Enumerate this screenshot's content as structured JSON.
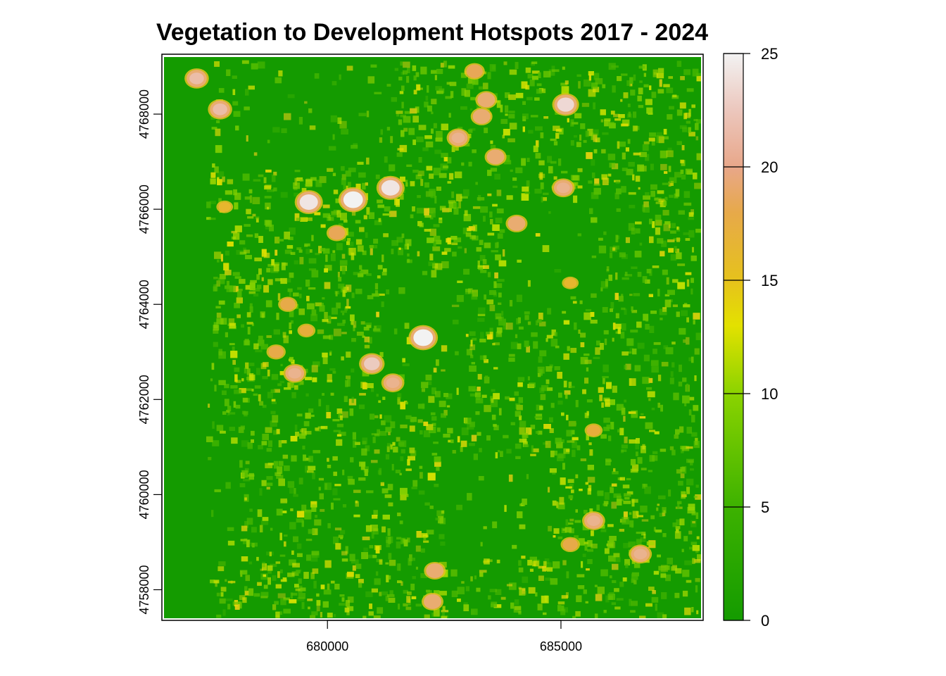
{
  "chart_data": {
    "type": "heatmap",
    "title": "Vegetation to Development Hotspots 2017 - 2024",
    "xlabel": "",
    "ylabel": "",
    "xlim": [
      676500,
      688000
    ],
    "ylim": [
      4757400,
      4769200
    ],
    "x_ticks": [
      680000,
      685000
    ],
    "y_ticks": [
      4758000,
      4760000,
      4762000,
      4764000,
      4766000,
      4768000
    ],
    "colorbar": {
      "range": [
        0,
        25
      ],
      "ticks": [
        0,
        5,
        10,
        15,
        20,
        25
      ],
      "colors": [
        "#149b00",
        "#36ae00",
        "#5bc100",
        "#8bd300",
        "#c9e400",
        "#e3e100",
        "#e6c41c",
        "#e7ad3a",
        "#e8a75a",
        "#eab69b",
        "#edd5d0",
        "#f2f2f2"
      ],
      "placement": "right"
    },
    "legend_placement": "right",
    "grid": false,
    "hotspots": [
      {
        "x": 677200,
        "y": 4768750,
        "value": 21
      },
      {
        "x": 677700,
        "y": 4768100,
        "value": 21
      },
      {
        "x": 679600,
        "y": 4766150,
        "value": 24
      },
      {
        "x": 680550,
        "y": 4766200,
        "value": 25
      },
      {
        "x": 681350,
        "y": 4766450,
        "value": 24
      },
      {
        "x": 683150,
        "y": 4768900,
        "value": 18
      },
      {
        "x": 683400,
        "y": 4768300,
        "value": 19
      },
      {
        "x": 683300,
        "y": 4767950,
        "value": 19
      },
      {
        "x": 682800,
        "y": 4767500,
        "value": 20
      },
      {
        "x": 683600,
        "y": 4767100,
        "value": 19
      },
      {
        "x": 685100,
        "y": 4768200,
        "value": 23
      },
      {
        "x": 685050,
        "y": 4766450,
        "value": 20
      },
      {
        "x": 684050,
        "y": 4765700,
        "value": 19
      },
      {
        "x": 680200,
        "y": 4765500,
        "value": 18
      },
      {
        "x": 682050,
        "y": 4763300,
        "value": 25
      },
      {
        "x": 680950,
        "y": 4762750,
        "value": 22
      },
      {
        "x": 681400,
        "y": 4762350,
        "value": 20
      },
      {
        "x": 679300,
        "y": 4762550,
        "value": 20
      },
      {
        "x": 678900,
        "y": 4763000,
        "value": 17
      },
      {
        "x": 679150,
        "y": 4764000,
        "value": 17
      },
      {
        "x": 679550,
        "y": 4763450,
        "value": 16
      },
      {
        "x": 682300,
        "y": 4758400,
        "value": 19
      },
      {
        "x": 682250,
        "y": 4757750,
        "value": 19
      },
      {
        "x": 685700,
        "y": 4759450,
        "value": 20
      },
      {
        "x": 686700,
        "y": 4758750,
        "value": 20
      },
      {
        "x": 685200,
        "y": 4758950,
        "value": 17
      },
      {
        "x": 685700,
        "y": 4761350,
        "value": 16
      },
      {
        "x": 685200,
        "y": 4764450,
        "value": 15
      },
      {
        "x": 677800,
        "y": 4766050,
        "value": 15
      }
    ]
  }
}
